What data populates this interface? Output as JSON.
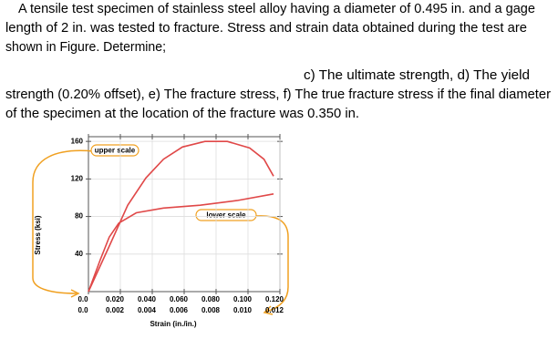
{
  "text": {
    "lines": [
      "A tensile test specimen of stainless steel alloy having a diameter of 0.495 in. and a gage",
      "length of 2 in. was tested to fracture. Stress and strain data obtained during the test are",
      "shown in Figure. Determine;",
      "c) The ultimate strength, d) The yield",
      "strength (0.20% offset), e) The fracture stress, f) The true fracture stress if the final diameter",
      "of the specimen at the location of the fracture was 0.350 in."
    ]
  },
  "chart_data": {
    "type": "line",
    "x_label": "Strain (in./in.)",
    "y_label": "Stress (ksi)",
    "xlim": [
      0,
      0.12
    ],
    "xticks": [
      {
        "value": 0,
        "label": "0.0"
      },
      {
        "value": 0.02,
        "label": "0.020"
      },
      {
        "value": 0.04,
        "label": "0.040"
      },
      {
        "value": 0.06,
        "label": "0.060"
      },
      {
        "value": 0.08,
        "label": "0.080"
      },
      {
        "value": 0.1,
        "label": "0.100"
      },
      {
        "value": 0.12,
        "label": "0.120"
      }
    ],
    "x2lim": [
      0,
      0.012
    ],
    "x2ticks": [
      {
        "value": 0,
        "label": "0.0"
      },
      {
        "value": 0.002,
        "label": "0.002"
      },
      {
        "value": 0.004,
        "label": "0.004"
      },
      {
        "value": 0.006,
        "label": "0.006"
      },
      {
        "value": 0.008,
        "label": "0.008"
      },
      {
        "value": 0.01,
        "label": "0.010"
      },
      {
        "value": 0.012,
        "label": "0.012"
      }
    ],
    "ylim": [
      0,
      165
    ],
    "yticks": [
      40,
      80,
      120,
      160
    ],
    "grid": true,
    "series": [
      {
        "name": "upper scale",
        "color": "#e04848",
        "axis": "x",
        "x": [
          0,
          0.0131,
          0.0246,
          0.036,
          0.047,
          0.0589,
          0.073,
          0.087,
          0.101,
          0.11,
          0.116
        ],
        "values": [
          0,
          48.5,
          92,
          121,
          141,
          154,
          160,
          160,
          153,
          141,
          123
        ]
      },
      {
        "name": "lower scale",
        "color": "#e04848",
        "axis": "x2",
        "x": [
          0,
          0.00074,
          0.0013,
          0.0019,
          0.003,
          0.0047,
          0.007,
          0.0093,
          0.0116
        ],
        "values": [
          0,
          34,
          58,
          73,
          84,
          89,
          92,
          97,
          104
        ]
      }
    ]
  }
}
